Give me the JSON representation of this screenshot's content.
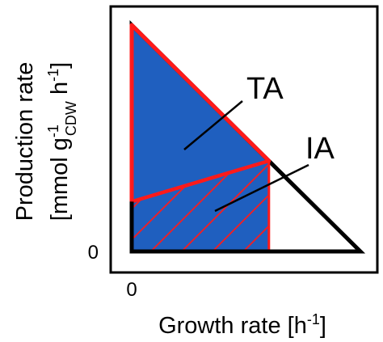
{
  "chart_data": {
    "type": "area",
    "title": "",
    "xlabel": {
      "main": "Growth rate [h",
      "sup": "-1",
      "tail": "]"
    },
    "ylabel": {
      "line1": "Production rate",
      "line2_main": "[mmol g",
      "line2_sup": "-1",
      "line2_sub": "CDW",
      "line2_tail": " h",
      "line2_sup2": "-1",
      "line2_close": "]"
    },
    "xlim": [
      0,
      1
    ],
    "ylim": [
      0,
      1.2
    ],
    "x_ticks": [
      {
        "value": 0,
        "label": "0"
      }
    ],
    "y_ticks": [
      {
        "value": 0,
        "label": "0"
      }
    ],
    "grid": false,
    "feasible_region": {
      "name": "",
      "color": "#000000",
      "points": [
        [
          0,
          0
        ],
        [
          0,
          1.0
        ],
        [
          1,
          0
        ]
      ]
    },
    "ta_region": {
      "label": "TA",
      "color": "#1f5fbf",
      "label_color": "#1f5fbf",
      "points": [
        [
          0,
          0
        ],
        [
          0,
          1.0
        ],
        [
          0.6,
          0.4
        ],
        [
          0.6,
          0
        ]
      ]
    },
    "ia_region": {
      "label": "IA",
      "color": "#ff1a1a",
      "label_color": "#ff1a1a",
      "points": [
        [
          0,
          0
        ],
        [
          0,
          0.22
        ],
        [
          0.6,
          0.4
        ],
        [
          0.6,
          0
        ]
      ]
    },
    "annotations": [
      {
        "text": "TA",
        "anchor": [
          0.23,
          0.52
        ]
      },
      {
        "text": "IA",
        "anchor": [
          0.36,
          0.2
        ]
      }
    ]
  }
}
